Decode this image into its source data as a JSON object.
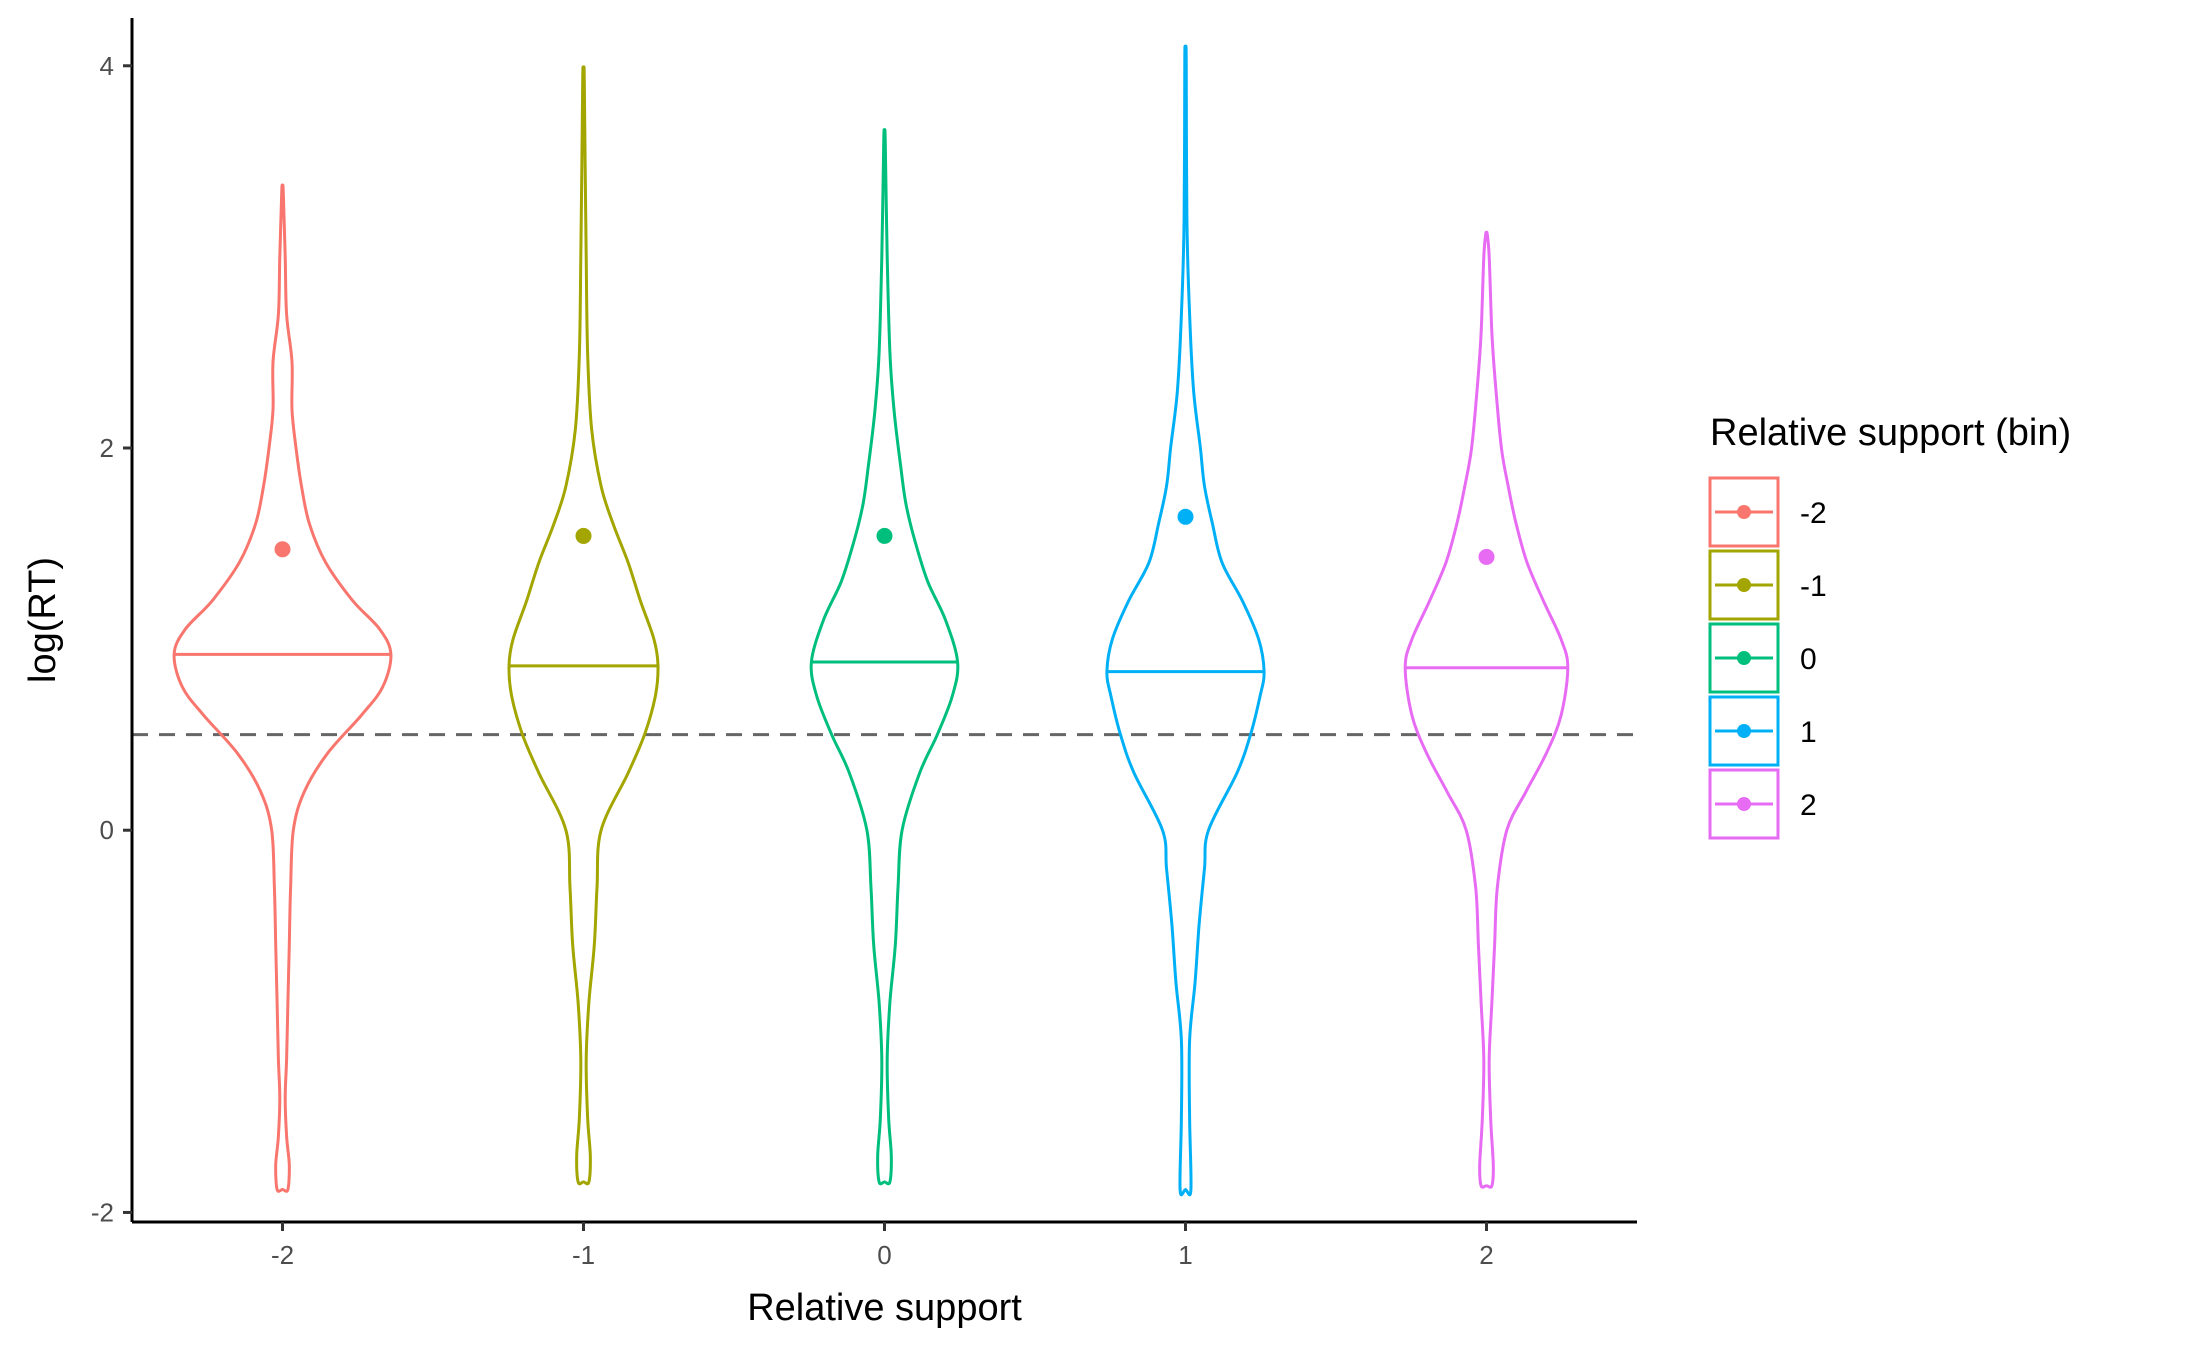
{
  "chart_data": {
    "type": "violin",
    "xlabel": "Relative support",
    "ylabel": "log(RT)",
    "xlim": [
      -2.5,
      2.5
    ],
    "ylim": [
      -2.05,
      4.25
    ],
    "x_ticks": [
      "-2",
      "-1",
      "0",
      "1",
      "2"
    ],
    "y_ticks": [
      -2,
      0,
      2,
      4
    ],
    "reference_line": {
      "y": 0.5,
      "style": "dashed",
      "color": "#666666"
    },
    "legend": {
      "title": "Relative support (bin)",
      "placement": "right",
      "entries": [
        "-2",
        "-1",
        "0",
        "1",
        "2"
      ]
    },
    "series": [
      {
        "name": "-2",
        "x": -2,
        "color": "#F8766D",
        "mean": 1.47,
        "median": 0.92,
        "min": -1.88,
        "max": 3.35,
        "profile": [
          [
            -1.88,
            0.04
          ],
          [
            -1.75,
            0.05
          ],
          [
            -1.6,
            0.03
          ],
          [
            -1.4,
            0.02
          ],
          [
            -1.2,
            0.03
          ],
          [
            -0.9,
            0.04
          ],
          [
            -0.6,
            0.05
          ],
          [
            -0.3,
            0.06
          ],
          [
            0.0,
            0.08
          ],
          [
            0.2,
            0.16
          ],
          [
            0.4,
            0.33
          ],
          [
            0.6,
            0.58
          ],
          [
            0.75,
            0.74
          ],
          [
            0.92,
            0.8
          ],
          [
            1.05,
            0.72
          ],
          [
            1.2,
            0.52
          ],
          [
            1.4,
            0.32
          ],
          [
            1.6,
            0.2
          ],
          [
            1.8,
            0.14
          ],
          [
            2.0,
            0.1
          ],
          [
            2.2,
            0.07
          ],
          [
            2.45,
            0.07
          ],
          [
            2.7,
            0.03
          ],
          [
            3.0,
            0.02
          ],
          [
            3.35,
            0.005
          ]
        ]
      },
      {
        "name": "-1",
        "x": -1,
        "color": "#A3A500",
        "mean": 1.54,
        "median": 0.86,
        "min": -1.84,
        "max": 3.96,
        "profile": [
          [
            -1.84,
            0.04
          ],
          [
            -1.7,
            0.05
          ],
          [
            -1.5,
            0.03
          ],
          [
            -1.2,
            0.02
          ],
          [
            -0.9,
            0.04
          ],
          [
            -0.6,
            0.08
          ],
          [
            -0.3,
            0.1
          ],
          [
            0.0,
            0.13
          ],
          [
            0.3,
            0.33
          ],
          [
            0.5,
            0.45
          ],
          [
            0.7,
            0.53
          ],
          [
            0.86,
            0.55
          ],
          [
            1.0,
            0.52
          ],
          [
            1.2,
            0.42
          ],
          [
            1.4,
            0.33
          ],
          [
            1.6,
            0.22
          ],
          [
            1.8,
            0.13
          ],
          [
            2.1,
            0.06
          ],
          [
            2.5,
            0.03
          ],
          [
            3.0,
            0.02
          ],
          [
            3.5,
            0.012
          ],
          [
            3.96,
            0.005
          ]
        ]
      },
      {
        "name": "0",
        "x": 0,
        "color": "#00BF7D",
        "mean": 1.54,
        "median": 0.88,
        "min": -1.84,
        "max": 3.62,
        "profile": [
          [
            -1.84,
            0.04
          ],
          [
            -1.7,
            0.05
          ],
          [
            -1.5,
            0.03
          ],
          [
            -1.2,
            0.02
          ],
          [
            -0.9,
            0.04
          ],
          [
            -0.6,
            0.08
          ],
          [
            -0.3,
            0.1
          ],
          [
            0.0,
            0.13
          ],
          [
            0.3,
            0.26
          ],
          [
            0.5,
            0.39
          ],
          [
            0.7,
            0.5
          ],
          [
            0.88,
            0.54
          ],
          [
            1.1,
            0.45
          ],
          [
            1.3,
            0.32
          ],
          [
            1.5,
            0.23
          ],
          [
            1.7,
            0.16
          ],
          [
            1.9,
            0.12
          ],
          [
            2.2,
            0.07
          ],
          [
            2.5,
            0.04
          ],
          [
            3.0,
            0.02
          ],
          [
            3.62,
            0.005
          ]
        ]
      },
      {
        "name": "1",
        "x": 1,
        "color": "#00B0F6",
        "mean": 1.64,
        "median": 0.83,
        "min": -1.88,
        "max": 4.04,
        "profile": [
          [
            -1.88,
            0.04
          ],
          [
            -1.5,
            0.03
          ],
          [
            -1.1,
            0.03
          ],
          [
            -0.8,
            0.07
          ],
          [
            -0.5,
            0.1
          ],
          [
            -0.2,
            0.14
          ],
          [
            0.0,
            0.17
          ],
          [
            0.3,
            0.38
          ],
          [
            0.5,
            0.48
          ],
          [
            0.7,
            0.55
          ],
          [
            0.83,
            0.58
          ],
          [
            1.0,
            0.54
          ],
          [
            1.2,
            0.42
          ],
          [
            1.4,
            0.27
          ],
          [
            1.6,
            0.2
          ],
          [
            1.8,
            0.14
          ],
          [
            2.0,
            0.11
          ],
          [
            2.3,
            0.06
          ],
          [
            2.7,
            0.03
          ],
          [
            3.2,
            0.01
          ],
          [
            4.04,
            0.005
          ]
        ]
      },
      {
        "name": "2",
        "x": 2,
        "color": "#E76BF3",
        "mean": 1.43,
        "median": 0.85,
        "min": -1.86,
        "max": 3.12,
        "profile": [
          [
            -1.86,
            0.04
          ],
          [
            -1.75,
            0.05
          ],
          [
            -1.5,
            0.03
          ],
          [
            -1.2,
            0.02
          ],
          [
            -0.9,
            0.04
          ],
          [
            -0.6,
            0.06
          ],
          [
            -0.3,
            0.08
          ],
          [
            0.0,
            0.15
          ],
          [
            0.2,
            0.29
          ],
          [
            0.4,
            0.44
          ],
          [
            0.6,
            0.55
          ],
          [
            0.85,
            0.6
          ],
          [
            1.0,
            0.55
          ],
          [
            1.2,
            0.42
          ],
          [
            1.4,
            0.3
          ],
          [
            1.6,
            0.22
          ],
          [
            1.8,
            0.16
          ],
          [
            2.0,
            0.11
          ],
          [
            2.3,
            0.07
          ],
          [
            2.6,
            0.04
          ],
          [
            3.0,
            0.02
          ],
          [
            3.12,
            0.005
          ]
        ]
      }
    ]
  }
}
